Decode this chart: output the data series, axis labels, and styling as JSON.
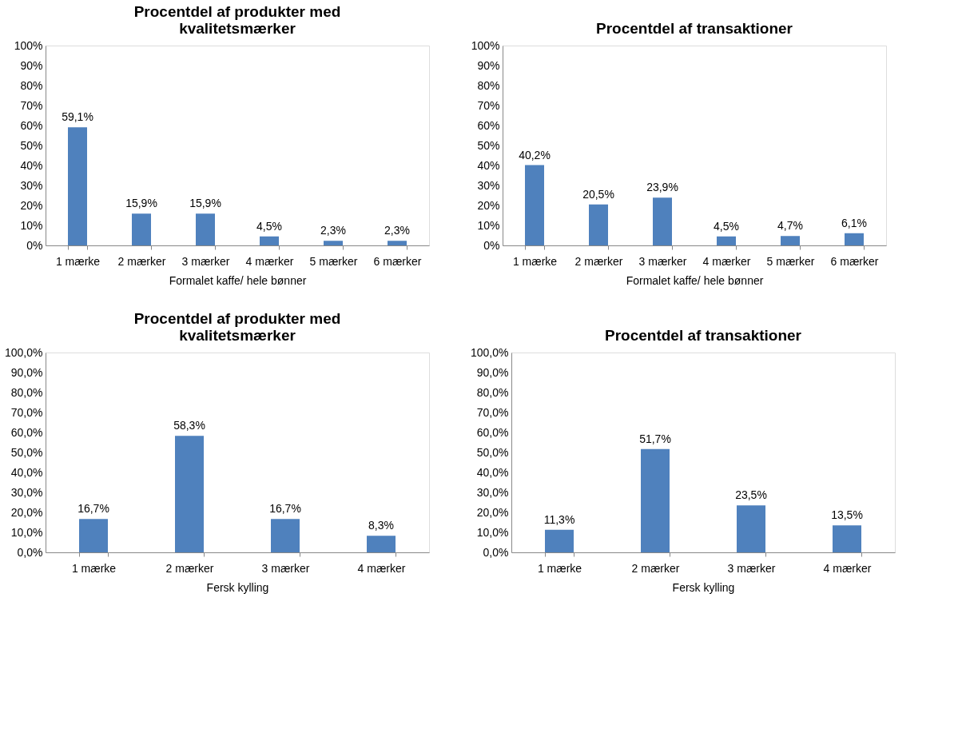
{
  "chart_data": [
    {
      "type": "bar",
      "title": "Procentdel af produkter med kvalitetsmærker",
      "xlabel": "Formalet kaffe/ hele bønner",
      "categories": [
        "1 mærke",
        "2 mærker",
        "3 mærker",
        "4 mærker",
        "5 mærker",
        "6 mærker"
      ],
      "values": [
        59.1,
        15.9,
        15.9,
        4.5,
        2.3,
        2.3
      ],
      "value_labels": [
        "59,1%",
        "15,9%",
        "15,9%",
        "4,5%",
        "2,3%",
        "2,3%"
      ],
      "color": "#4f81bd",
      "ylim": [
        0,
        100
      ],
      "yticks": [
        {
          "value": 0,
          "label": "0%"
        },
        {
          "value": 10,
          "label": "10%"
        },
        {
          "value": 20,
          "label": "20%"
        },
        {
          "value": 30,
          "label": "30%"
        },
        {
          "value": 40,
          "label": "40%"
        },
        {
          "value": 50,
          "label": "50%"
        },
        {
          "value": 60,
          "label": "60%"
        },
        {
          "value": 70,
          "label": "70%"
        },
        {
          "value": 80,
          "label": "80%"
        },
        {
          "value": 90,
          "label": "90%"
        },
        {
          "value": 100,
          "label": "100%"
        }
      ],
      "grid": false
    },
    {
      "type": "bar",
      "title": "Procentdel af transaktioner",
      "xlabel": "Formalet kaffe/ hele bønner",
      "categories": [
        "1 mærke",
        "2 mærker",
        "3 mærker",
        "4 mærker",
        "5 mærker",
        "6 mærker"
      ],
      "values": [
        40.2,
        20.5,
        23.9,
        4.5,
        4.7,
        6.1
      ],
      "value_labels": [
        "40,2%",
        "20,5%",
        "23,9%",
        "4,5%",
        "4,7%",
        "6,1%"
      ],
      "color": "#4f81bd",
      "ylim": [
        0,
        100
      ],
      "yticks": [
        {
          "value": 0,
          "label": "0%"
        },
        {
          "value": 10,
          "label": "10%"
        },
        {
          "value": 20,
          "label": "20%"
        },
        {
          "value": 30,
          "label": "30%"
        },
        {
          "value": 40,
          "label": "40%"
        },
        {
          "value": 50,
          "label": "50%"
        },
        {
          "value": 60,
          "label": "60%"
        },
        {
          "value": 70,
          "label": "70%"
        },
        {
          "value": 80,
          "label": "80%"
        },
        {
          "value": 90,
          "label": "90%"
        },
        {
          "value": 100,
          "label": "100%"
        }
      ],
      "grid": false
    },
    {
      "type": "bar",
      "title": "Procentdel af produkter med kvalitetsmærker",
      "xlabel": "Fersk kylling",
      "categories": [
        "1 mærke",
        "2 mærker",
        "3 mærker",
        "4 mærker"
      ],
      "values": [
        16.7,
        58.3,
        16.7,
        8.3
      ],
      "value_labels": [
        "16,7%",
        "58,3%",
        "16,7%",
        "8,3%"
      ],
      "color": "#4f81bd",
      "ylim": [
        0,
        100
      ],
      "yticks": [
        {
          "value": 0,
          "label": "0,0%"
        },
        {
          "value": 10,
          "label": "10,0%"
        },
        {
          "value": 20,
          "label": "20,0%"
        },
        {
          "value": 30,
          "label": "30,0%"
        },
        {
          "value": 40,
          "label": "40,0%"
        },
        {
          "value": 50,
          "label": "50,0%"
        },
        {
          "value": 60,
          "label": "60,0%"
        },
        {
          "value": 70,
          "label": "70,0%"
        },
        {
          "value": 80,
          "label": "80,0%"
        },
        {
          "value": 90,
          "label": "90,0%"
        },
        {
          "value": 100,
          "label": "100,0%"
        }
      ],
      "grid": false
    },
    {
      "type": "bar",
      "title": "Procentdel af transaktioner",
      "xlabel": "Fersk kylling",
      "categories": [
        "1 mærke",
        "2 mærker",
        "3 mærker",
        "4 mærker"
      ],
      "values": [
        11.3,
        51.7,
        23.5,
        13.5
      ],
      "value_labels": [
        "11,3%",
        "51,7%",
        "23,5%",
        "13,5%"
      ],
      "color": "#4f81bd",
      "ylim": [
        0,
        100
      ],
      "yticks": [
        {
          "value": 0,
          "label": "0,0%"
        },
        {
          "value": 10,
          "label": "10,0%"
        },
        {
          "value": 20,
          "label": "20,0%"
        },
        {
          "value": 30,
          "label": "30,0%"
        },
        {
          "value": 40,
          "label": "40,0%"
        },
        {
          "value": 50,
          "label": "50,0%"
        },
        {
          "value": 60,
          "label": "60,0%"
        },
        {
          "value": 70,
          "label": "70,0%"
        },
        {
          "value": 80,
          "label": "80,0%"
        },
        {
          "value": 90,
          "label": "90,0%"
        },
        {
          "value": 100,
          "label": "100,0%"
        }
      ],
      "grid": false
    }
  ]
}
